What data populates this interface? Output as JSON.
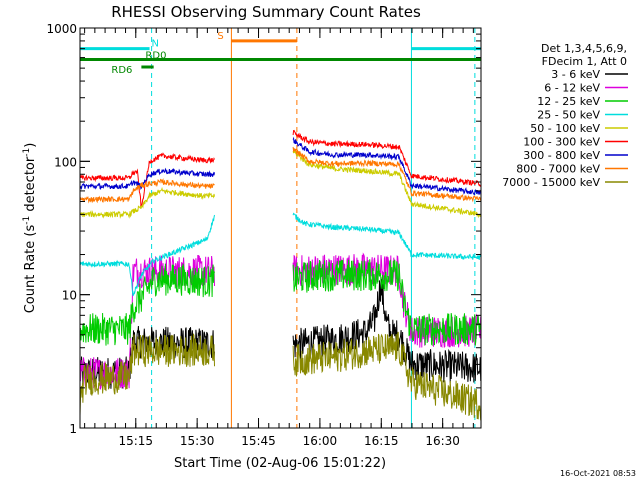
{
  "chart_data": {
    "type": "line",
    "title": "RHESSI Observing Summary Count Rates",
    "xlabel": "Start Time (02-Aug-06 15:01:22)",
    "ylabel": "Count Rate (s⁻¹ detector⁻¹)",
    "ylabel_main": "Count Rate (s",
    "ylabel_sup1": "-1",
    "ylabel_mid": " detector",
    "ylabel_sup2": "-1",
    "ylabel_end": ")",
    "x_ticks": [
      "15:15",
      "15:30",
      "15:45",
      "16:00",
      "16:15",
      "16:30"
    ],
    "x_tick_minutes": [
      13.63,
      28.63,
      43.63,
      58.63,
      73.63,
      88.63
    ],
    "x_range_minutes": [
      0,
      98
    ],
    "y_scale": "log",
    "y_range": [
      1,
      1000
    ],
    "y_ticks": [
      1,
      10,
      100,
      1000
    ],
    "y_tick_labels": [
      "1",
      "10",
      "100",
      "1000"
    ],
    "legend_header": [
      "Det 1,3,4,5,6,9,",
      "FDecim 1, Att 0"
    ],
    "legend_position": "right",
    "timestamp": "16-Oct-2021 08:53",
    "gaps_minutes": [
      [
        33,
        52
      ]
    ],
    "series": [
      {
        "name": "3 - 6 keV",
        "color": "#000000",
        "knots": [
          [
            0,
            2.6
          ],
          [
            12,
            2.6
          ],
          [
            13,
            4.4
          ],
          [
            33,
            4.3
          ],
          [
            52,
            4.2
          ],
          [
            55,
            4.3
          ],
          [
            62,
            4.6
          ],
          [
            70,
            5.2
          ],
          [
            72,
            6.5
          ],
          [
            73.5,
            12
          ],
          [
            75,
            6
          ],
          [
            76,
            5
          ],
          [
            78,
            5.0
          ],
          [
            81,
            3.0
          ],
          [
            98,
            2.8
          ]
        ]
      },
      {
        "name": "6 - 12 keV",
        "color": "#dd00dd",
        "knots": [
          [
            0,
            2.6
          ],
          [
            12,
            2.6
          ],
          [
            13,
            15
          ],
          [
            17,
            15
          ],
          [
            33,
            15
          ],
          [
            52,
            15
          ],
          [
            60,
            15.5
          ],
          [
            70,
            15.5
          ],
          [
            78,
            15
          ],
          [
            79,
            9
          ],
          [
            81,
            5.3
          ],
          [
            98,
            5.3
          ]
        ]
      },
      {
        "name": "12 - 25 keV",
        "color": "#00cc00",
        "knots": [
          [
            0,
            5.5
          ],
          [
            12,
            5.5
          ],
          [
            13,
            8
          ],
          [
            15,
            9.5
          ],
          [
            18,
            13
          ],
          [
            25,
            13
          ],
          [
            32,
            12.5
          ],
          [
            33,
            13
          ],
          [
            52,
            13
          ],
          [
            58,
            14
          ],
          [
            70,
            14
          ],
          [
            78,
            14
          ],
          [
            79,
            9
          ],
          [
            81,
            5.5
          ],
          [
            98,
            5.5
          ]
        ]
      },
      {
        "name": "25 - 50 keV",
        "color": "#00dddd",
        "knots": [
          [
            0,
            17
          ],
          [
            12,
            17
          ],
          [
            13,
            10
          ],
          [
            15,
            14
          ],
          [
            18,
            18
          ],
          [
            25,
            22
          ],
          [
            31,
            26
          ],
          [
            33,
            40
          ],
          [
            52,
            40
          ],
          [
            55,
            34
          ],
          [
            62,
            32
          ],
          [
            70,
            31
          ],
          [
            78,
            29
          ],
          [
            81,
            20
          ],
          [
            98,
            19
          ]
        ]
      },
      {
        "name": "50 - 100 keV",
        "color": "#cccc00",
        "knots": [
          [
            0,
            40
          ],
          [
            12,
            40
          ],
          [
            13,
            42
          ],
          [
            15,
            45
          ],
          [
            17,
            55
          ],
          [
            20,
            60
          ],
          [
            30,
            55
          ],
          [
            33,
            55
          ],
          [
            52,
            120
          ],
          [
            56,
            95
          ],
          [
            62,
            88
          ],
          [
            70,
            85
          ],
          [
            78,
            80
          ],
          [
            81,
            48
          ],
          [
            98,
            40
          ]
        ]
      },
      {
        "name": "100 - 300 keV",
        "color": "#ff0000",
        "knots": [
          [
            0,
            75
          ],
          [
            12,
            75
          ],
          [
            13,
            82
          ],
          [
            14,
            84
          ],
          [
            15,
            45
          ],
          [
            17,
            100
          ],
          [
            20,
            110
          ],
          [
            30,
            102
          ],
          [
            33,
            102
          ],
          [
            52,
            165
          ],
          [
            56,
            140
          ],
          [
            62,
            135
          ],
          [
            70,
            134
          ],
          [
            78,
            128
          ],
          [
            81,
            78
          ],
          [
            98,
            68
          ]
        ]
      },
      {
        "name": "300 - 800 keV",
        "color": "#0000cc",
        "knots": [
          [
            0,
            65
          ],
          [
            12,
            65
          ],
          [
            13,
            70
          ],
          [
            15,
            65
          ],
          [
            17,
            80
          ],
          [
            20,
            85
          ],
          [
            30,
            80
          ],
          [
            33,
            80
          ],
          [
            52,
            145
          ],
          [
            56,
            118
          ],
          [
            62,
            112
          ],
          [
            70,
            112
          ],
          [
            78,
            108
          ],
          [
            81,
            66
          ],
          [
            98,
            58
          ]
        ]
      },
      {
        "name": "800 - 7000 keV",
        "color": "#ff7700",
        "knots": [
          [
            0,
            52
          ],
          [
            12,
            52
          ],
          [
            13,
            60
          ],
          [
            15,
            66
          ],
          [
            17,
            68
          ],
          [
            20,
            70
          ],
          [
            30,
            65
          ],
          [
            33,
            65
          ],
          [
            52,
            125
          ],
          [
            56,
            100
          ],
          [
            62,
            96
          ],
          [
            70,
            97
          ],
          [
            78,
            95
          ],
          [
            81,
            58
          ],
          [
            98,
            52
          ]
        ]
      },
      {
        "name": "7000 - 15000 keV",
        "color": "#888800",
        "knots": [
          [
            0,
            1.5
          ],
          [
            1,
            2.3
          ],
          [
            12,
            2.4
          ],
          [
            13,
            3.8
          ],
          [
            33,
            3.8
          ],
          [
            52,
            3.2
          ],
          [
            62,
            3.4
          ],
          [
            70,
            3.8
          ],
          [
            78,
            4.0
          ],
          [
            81,
            2.2
          ],
          [
            98,
            1.5
          ]
        ]
      }
    ],
    "annotations": [
      {
        "label": "N",
        "color": "#00dddd",
        "start_minutes": 0,
        "end_minutes": 17,
        "level": 700
      },
      {
        "label": "",
        "color": "#00dddd",
        "start_minutes": 81,
        "end_minutes": 98,
        "level": 700
      },
      {
        "label": "RD0",
        "color": "#008800",
        "start_minutes": 0,
        "end_minutes": 98,
        "level": 580
      },
      {
        "label": "RD6",
        "color": "#008800",
        "start_minutes": 15,
        "end_minutes": 18,
        "level": 510
      },
      {
        "label": "S",
        "color": "#ff7700",
        "start_minutes": 37,
        "end_minutes": 53,
        "level": 800
      }
    ],
    "vlines": [
      {
        "minutes": 0,
        "color": "#00dddd",
        "style": "solid"
      },
      {
        "minutes": 17.5,
        "color": "#00dddd",
        "style": "dashed"
      },
      {
        "minutes": 81,
        "color": "#00dddd",
        "style": "solid"
      },
      {
        "minutes": 96.5,
        "color": "#00dddd",
        "style": "dashed"
      },
      {
        "minutes": 37,
        "color": "#ff7700",
        "style": "solid"
      },
      {
        "minutes": 53,
        "color": "#ff7700",
        "style": "dashed"
      }
    ]
  }
}
